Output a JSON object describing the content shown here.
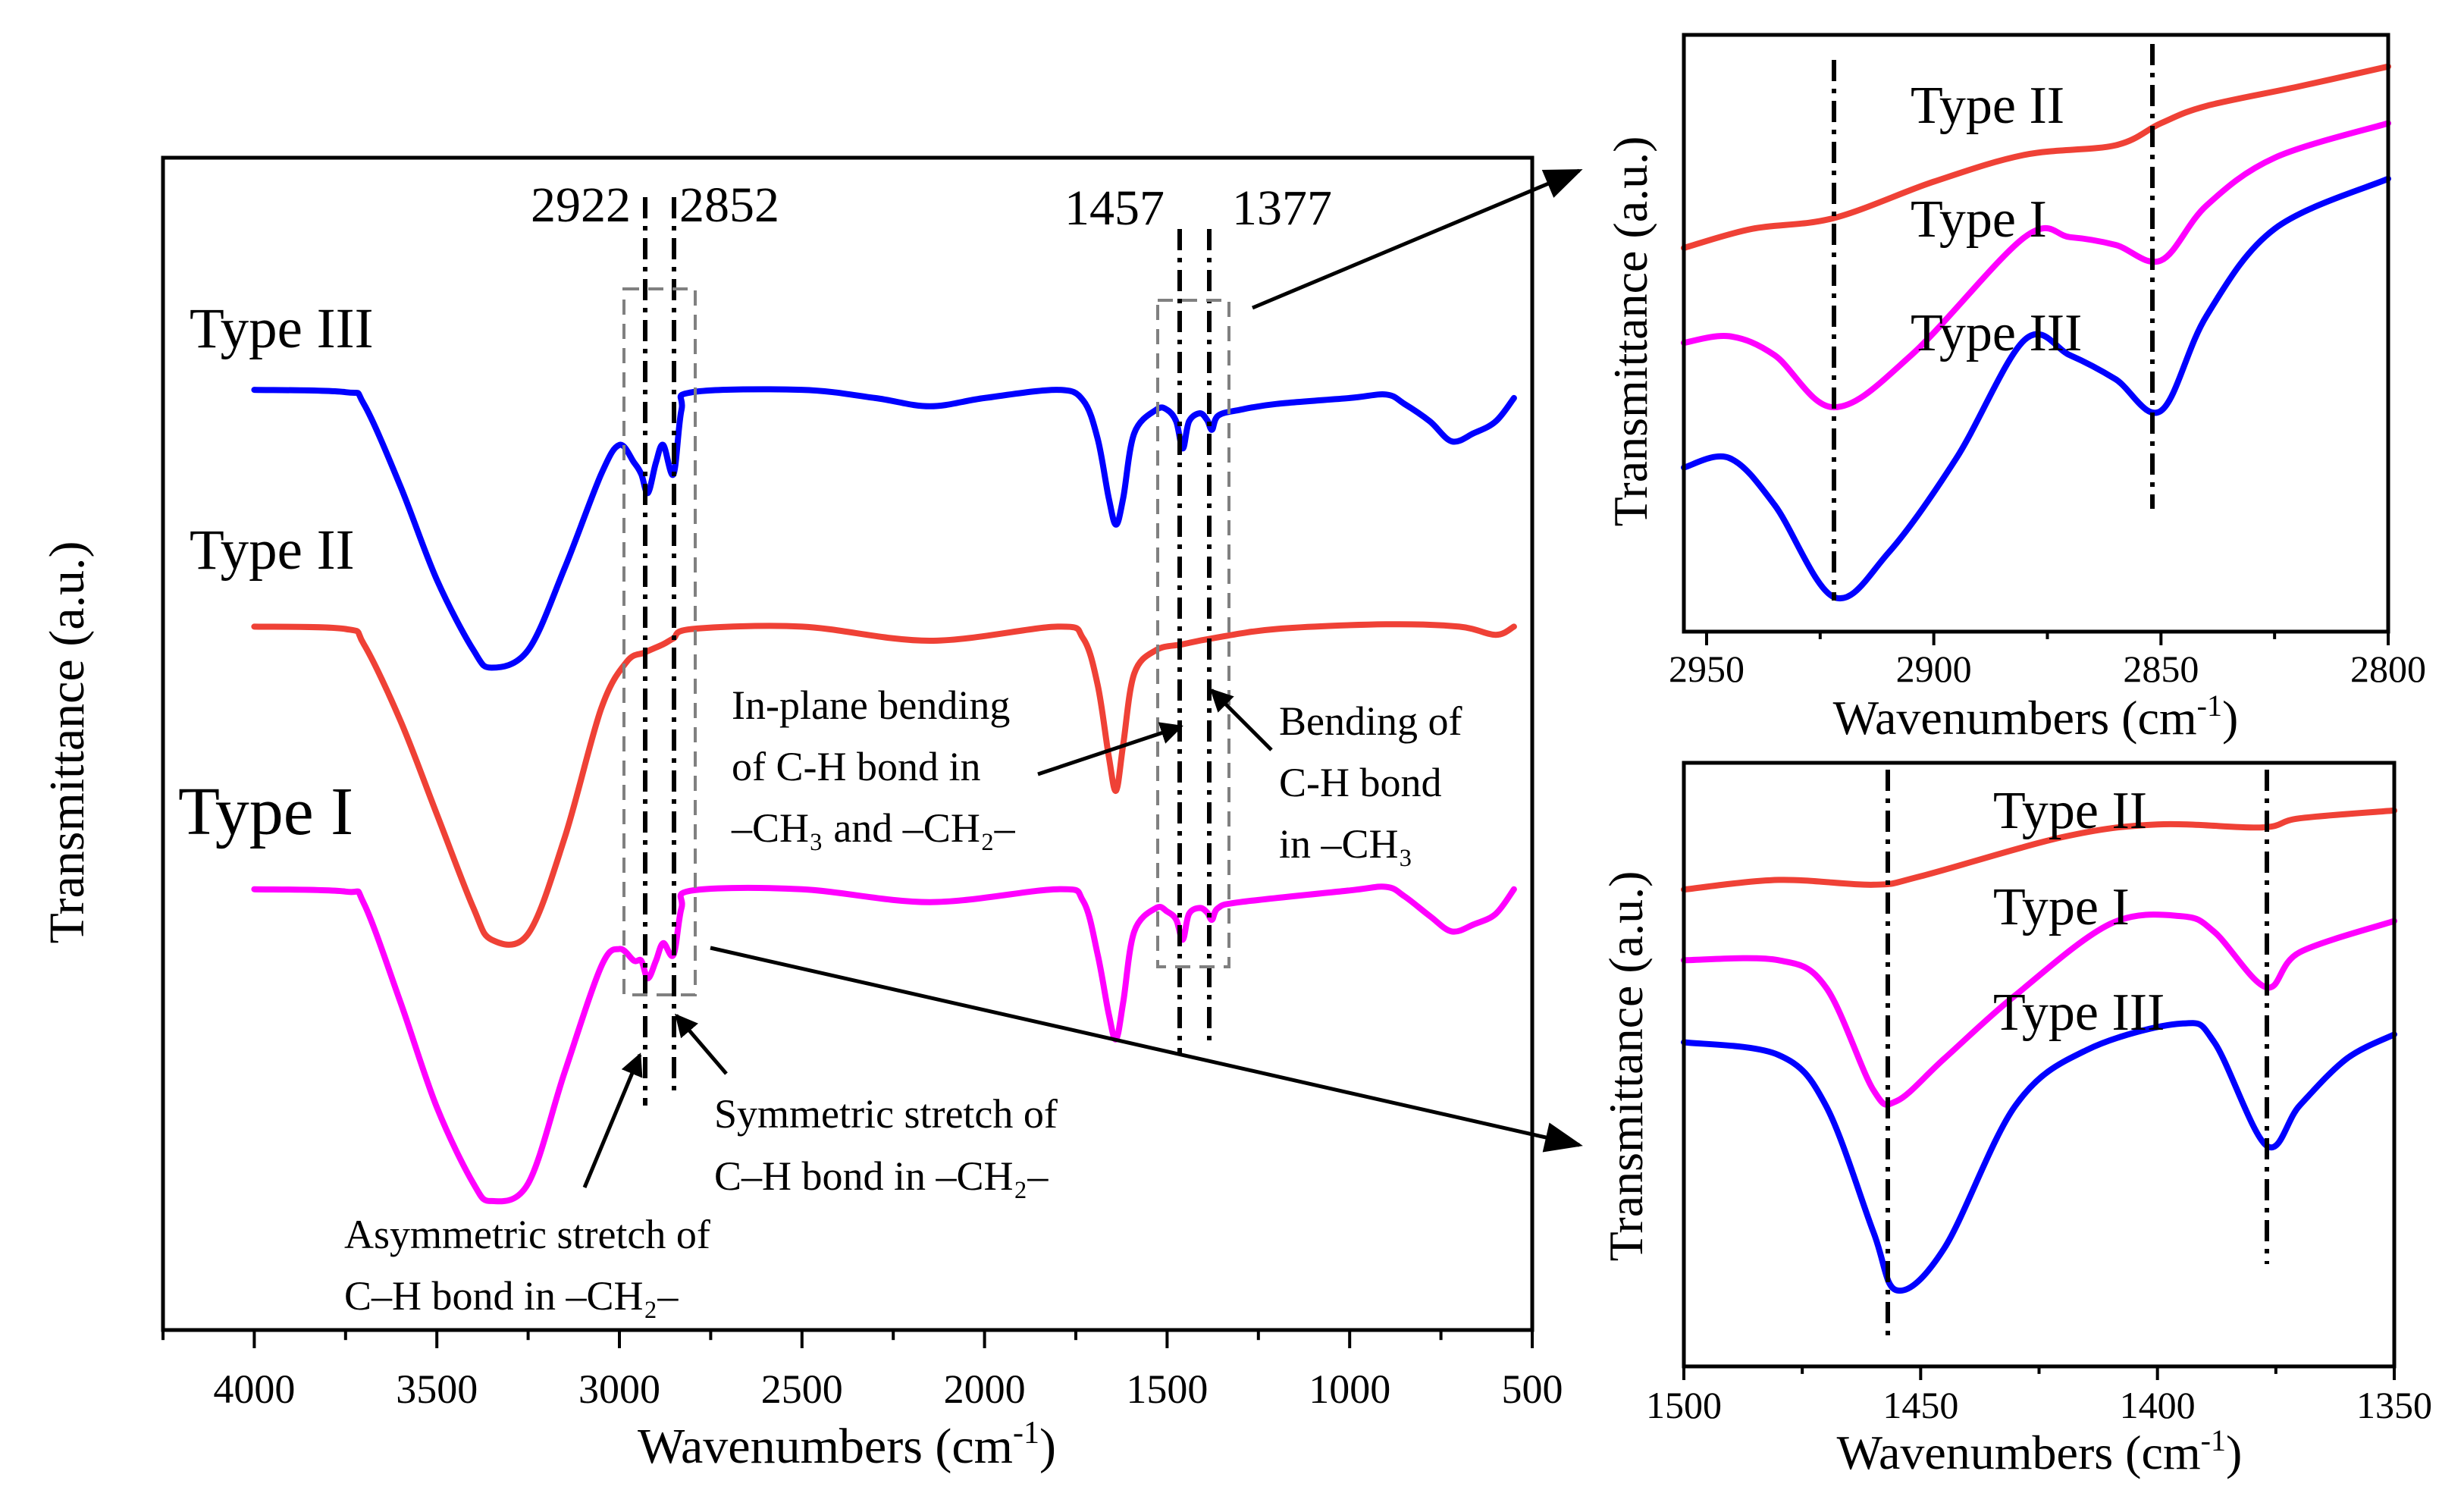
{
  "colors": {
    "type_i": "#ff00ff",
    "type_ii": "#ef4136",
    "type_iii": "#0000ff"
  },
  "chart_data": [
    {
      "type": "line",
      "title": "",
      "xlabel": "Wavenumbers (cm-1)",
      "xlabel_main": "Wavenumbers (cm",
      "xlabel_sup": "-1",
      "xlabel_end": ")",
      "ylabel": "Transmittance (a.u.)",
      "xlim": [
        4250,
        500
      ],
      "ylim": [
        0,
        100
      ],
      "xticks": [
        4000,
        3500,
        3000,
        2500,
        2000,
        1500,
        1000,
        500
      ],
      "minor_xticks": [
        4250,
        3750,
        3250,
        2750,
        2250,
        1750,
        1250,
        750
      ],
      "grid": false,
      "series": [
        {
          "name": "Type III",
          "color_key": "type_iii",
          "points": [
            [
              4000,
              80.2
            ],
            [
              3750,
              80
            ],
            [
              3700,
              79
            ],
            [
              3600,
              72
            ],
            [
              3500,
              64
            ],
            [
              3400,
              58
            ],
            [
              3350,
              56.5
            ],
            [
              3250,
              58
            ],
            [
              3150,
              65
            ],
            [
              3050,
              73
            ],
            [
              3000,
              75.5
            ],
            [
              2960,
              74
            ],
            [
              2940,
              73
            ],
            [
              2922,
              71.4
            ],
            [
              2900,
              74
            ],
            [
              2880,
              75.5
            ],
            [
              2852,
              73
            ],
            [
              2830,
              78.5
            ],
            [
              2800,
              80
            ],
            [
              2500,
              80.2
            ],
            [
              2300,
              79.5
            ],
            [
              2150,
              78.8
            ],
            [
              2000,
              79.5
            ],
            [
              1800,
              80.2
            ],
            [
              1730,
              79.3
            ],
            [
              1690,
              76
            ],
            [
              1660,
              71
            ],
            [
              1640,
              68.7
            ],
            [
              1620,
              71
            ],
            [
              1590,
              76.5
            ],
            [
              1530,
              78.5
            ],
            [
              1500,
              78.5
            ],
            [
              1475,
              77.5
            ],
            [
              1457,
              75.2
            ],
            [
              1440,
              77.5
            ],
            [
              1410,
              78.2
            ],
            [
              1390,
              77.6
            ],
            [
              1377,
              76.8
            ],
            [
              1360,
              78
            ],
            [
              1300,
              78.5
            ],
            [
              1200,
              79
            ],
            [
              1000,
              79.5
            ],
            [
              900,
              79.8
            ],
            [
              850,
              79
            ],
            [
              780,
              77.5
            ],
            [
              720,
              75.8
            ],
            [
              660,
              76.5
            ],
            [
              600,
              77.5
            ],
            [
              550,
              79.5
            ]
          ]
        },
        {
          "name": "Type II",
          "color_key": "type_ii",
          "points": [
            [
              4000,
              60
            ],
            [
              3750,
              59.8
            ],
            [
              3700,
              58.5
            ],
            [
              3600,
              52
            ],
            [
              3500,
              44
            ],
            [
              3400,
              36
            ],
            [
              3350,
              33.3
            ],
            [
              3250,
              33.8
            ],
            [
              3150,
              42
            ],
            [
              3050,
              53
            ],
            [
              2980,
              57
            ],
            [
              2930,
              57.8
            ],
            [
              2880,
              58.5
            ],
            [
              2852,
              59
            ],
            [
              2800,
              59.8
            ],
            [
              2500,
              60
            ],
            [
              2150,
              58.8
            ],
            [
              1800,
              60
            ],
            [
              1730,
              59
            ],
            [
              1690,
              55
            ],
            [
              1660,
              49
            ],
            [
              1640,
              46
            ],
            [
              1620,
              50
            ],
            [
              1590,
              56
            ],
            [
              1530,
              58
            ],
            [
              1457,
              58.5
            ],
            [
              1377,
              59
            ],
            [
              1200,
              59.8
            ],
            [
              900,
              60.2
            ],
            [
              700,
              60
            ],
            [
              600,
              59.3
            ],
            [
              550,
              60
            ]
          ]
        },
        {
          "name": "Type I",
          "color_key": "type_i",
          "points": [
            [
              4000,
              37.6
            ],
            [
              3750,
              37.4
            ],
            [
              3700,
              36.4
            ],
            [
              3600,
              28
            ],
            [
              3500,
              19
            ],
            [
              3400,
              12.5
            ],
            [
              3350,
              11
            ],
            [
              3250,
              12.5
            ],
            [
              3150,
              22
            ],
            [
              3050,
              31
            ],
            [
              3000,
              32.5
            ],
            [
              2960,
              31.5
            ],
            [
              2940,
              31.5
            ],
            [
              2922,
              30
            ],
            [
              2900,
              31.5
            ],
            [
              2880,
              33
            ],
            [
              2852,
              32
            ],
            [
              2830,
              36
            ],
            [
              2800,
              37.5
            ],
            [
              2500,
              37.6
            ],
            [
              2150,
              36.5
            ],
            [
              1800,
              37.6
            ],
            [
              1730,
              36.6
            ],
            [
              1690,
              32
            ],
            [
              1660,
              27
            ],
            [
              1640,
              24.8
            ],
            [
              1620,
              28
            ],
            [
              1590,
              34
            ],
            [
              1530,
              36
            ],
            [
              1500,
              35.7
            ],
            [
              1475,
              35
            ],
            [
              1457,
              33.3
            ],
            [
              1440,
              35.5
            ],
            [
              1410,
              36
            ],
            [
              1390,
              35.6
            ],
            [
              1377,
              35
            ],
            [
              1360,
              36
            ],
            [
              1300,
              36.5
            ],
            [
              1000,
              37.5
            ],
            [
              900,
              37.8
            ],
            [
              850,
              37
            ],
            [
              780,
              35.3
            ],
            [
              720,
              34
            ],
            [
              660,
              34.6
            ],
            [
              600,
              35.5
            ],
            [
              550,
              37.6
            ]
          ]
        }
      ],
      "series_labels": [
        "Type III",
        "Type II",
        "Type I"
      ],
      "peak_lines": [
        {
          "x": 2922,
          "label": "2922"
        },
        {
          "x": 2852,
          "label": "2852"
        },
        {
          "x": 1457,
          "label": "1457"
        },
        {
          "x": 1377,
          "label": "1377"
        }
      ],
      "annotations": {
        "in_plane": [
          "In-plane bending",
          "of C-H bond in",
          "–CH₃ and –CH₂–"
        ],
        "bending_ch3": [
          "Bending of",
          "C-H bond",
          "in –CH₃"
        ],
        "sym_stretch": [
          "Symmetric stretch of",
          "C–H bond in –CH₂–"
        ],
        "asym_stretch": [
          "Asymmetric stretch of",
          "C–H bond in –CH₂–"
        ]
      }
    },
    {
      "type": "line",
      "title": "",
      "xlabel": "Wavenumbers (cm-1)",
      "ylabel": "Transmittance (a.u.)",
      "xlim": [
        2955,
        2800
      ],
      "ylim": [
        0,
        100
      ],
      "xticks": [
        2950,
        2900,
        2850,
        2800
      ],
      "minor_xticks": [
        2925,
        2875,
        2825
      ],
      "peak_lines": [
        2922,
        2852
      ],
      "series": [
        {
          "name": "Type II",
          "color_key": "type_ii",
          "points": [
            [
              2955,
              64.3
            ],
            [
              2940,
              67.5
            ],
            [
              2922,
              69.3
            ],
            [
              2900,
              75.4
            ],
            [
              2880,
              79.9
            ],
            [
              2860,
              81.5
            ],
            [
              2850,
              85.2
            ],
            [
              2840,
              88.1
            ],
            [
              2820,
              91.3
            ],
            [
              2800,
              94.7
            ]
          ]
        },
        {
          "name": "Type I",
          "color_key": "type_i",
          "points": [
            [
              2955,
              48.4
            ],
            [
              2945,
              49.5
            ],
            [
              2935,
              46.3
            ],
            [
              2922,
              37.6
            ],
            [
              2905,
              46.3
            ],
            [
              2880,
              66.1
            ],
            [
              2870,
              66.1
            ],
            [
              2860,
              64.8
            ],
            [
              2850,
              62.2
            ],
            [
              2840,
              71.4
            ],
            [
              2825,
              79.4
            ],
            [
              2800,
              85.2
            ]
          ]
        },
        {
          "name": "Type III",
          "color_key": "type_iii",
          "points": [
            [
              2955,
              27.5
            ],
            [
              2945,
              29.1
            ],
            [
              2935,
              21.2
            ],
            [
              2922,
              5.8
            ],
            [
              2910,
              13.2
            ],
            [
              2895,
              29.1
            ],
            [
              2880,
              48.9
            ],
            [
              2870,
              46.3
            ],
            [
              2860,
              42.3
            ],
            [
              2850,
              37
            ],
            [
              2840,
              52.9
            ],
            [
              2825,
              67.5
            ],
            [
              2800,
              75.9
            ]
          ]
        }
      ]
    },
    {
      "type": "line",
      "title": "",
      "xlabel": "Wavenumbers (cm-1)",
      "ylabel": "Transmittance (a.u.)",
      "xlim": [
        1500,
        1350
      ],
      "ylim": [
        0,
        100
      ],
      "xticks": [
        1500,
        1450,
        1400,
        1350
      ],
      "minor_xticks": [
        1475,
        1425,
        1375
      ],
      "peak_lines": [
        1457,
        1377
      ],
      "series": [
        {
          "name": "Type II",
          "color_key": "type_ii",
          "points": [
            [
              1500,
              79
            ],
            [
              1480,
              80.6
            ],
            [
              1460,
              79.8
            ],
            [
              1450,
              81.2
            ],
            [
              1420,
              87.7
            ],
            [
              1400,
              89.8
            ],
            [
              1378,
              89.3
            ],
            [
              1370,
              90.8
            ],
            [
              1350,
              92.1
            ]
          ]
        },
        {
          "name": "Type I",
          "color_key": "type_i",
          "points": [
            [
              1500,
              67.3
            ],
            [
              1480,
              67.3
            ],
            [
              1470,
              62.8
            ],
            [
              1460,
              45.8
            ],
            [
              1455,
              44
            ],
            [
              1445,
              51
            ],
            [
              1430,
              61.5
            ],
            [
              1410,
              73.3
            ],
            [
              1395,
              74.6
            ],
            [
              1388,
              72
            ],
            [
              1377,
              62.8
            ],
            [
              1370,
              68.6
            ],
            [
              1350,
              73.8
            ]
          ]
        },
        {
          "name": "Type III",
          "color_key": "type_iii",
          "points": [
            [
              1500,
              53.7
            ],
            [
              1480,
              51.6
            ],
            [
              1470,
              43.2
            ],
            [
              1460,
              22.3
            ],
            [
              1455,
              12.6
            ],
            [
              1445,
              19.6
            ],
            [
              1430,
              43.2
            ],
            [
              1415,
              52.4
            ],
            [
              1395,
              56.8
            ],
            [
              1388,
              53.7
            ],
            [
              1377,
              36.6
            ],
            [
              1370,
              43.2
            ],
            [
              1360,
              51
            ],
            [
              1350,
              55
            ]
          ]
        }
      ]
    }
  ]
}
